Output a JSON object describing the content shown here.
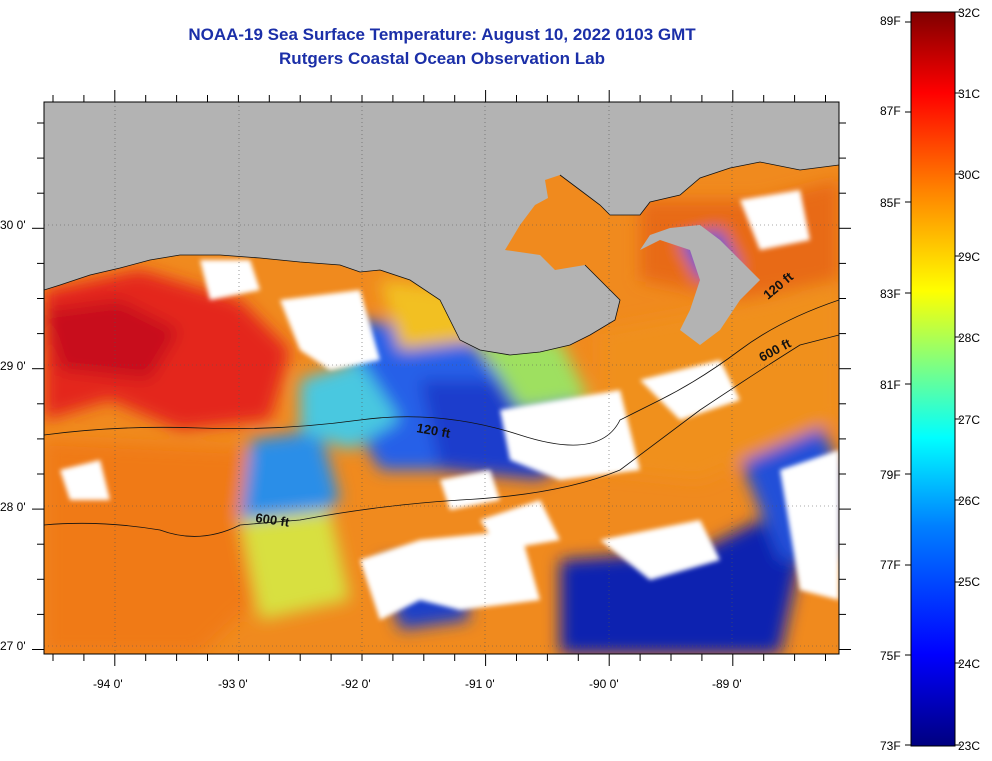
{
  "title_line1": "NOAA-19 Sea Surface Temperature:  August 10, 2022 0103 GMT",
  "title_line2": "Rutgers Coastal Ocean Observation Lab",
  "map": {
    "lat_labels": [
      "30 0'",
      "29 0'",
      "28 0'",
      "27 0'"
    ],
    "lat_values": [
      30,
      29,
      28,
      27
    ],
    "lon_labels": [
      "-94 0'",
      "-93 0'",
      "-92 0'",
      "-91 0'",
      "-90 0'",
      "-89 0'"
    ],
    "lon_values": [
      -94,
      -93,
      -92,
      -91,
      -90,
      -89
    ],
    "lat_range": [
      26.94,
      30.85
    ],
    "lon_range": [
      -94.55,
      -88.12
    ],
    "land_color": "#b3b3b3",
    "cloud_color": "#ffffff",
    "contour_labels": [
      "120 ft",
      "600 ft",
      "120 ft",
      "600 ft"
    ]
  },
  "colorbar": {
    "f_labels": [
      "89F",
      "87F",
      "85F",
      "83F",
      "81F",
      "79F",
      "77F",
      "75F",
      "73F"
    ],
    "c_labels": [
      "32C",
      "31C",
      "30C",
      "29C",
      "28C",
      "27C",
      "26C",
      "25C",
      "24C",
      "23C"
    ],
    "c_range": [
      23,
      32
    ],
    "colors": [
      "#00007f",
      "#0000ff",
      "#0080ff",
      "#00ffff",
      "#80ff80",
      "#ffff00",
      "#ff8000",
      "#ff0000",
      "#7f0000"
    ]
  }
}
